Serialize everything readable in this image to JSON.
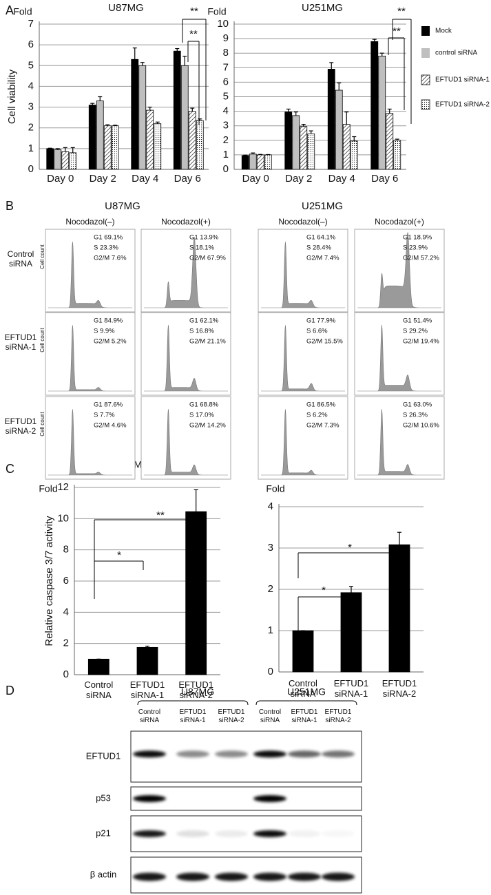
{
  "figure": {
    "panel_labels": [
      "A",
      "B",
      "C",
      "D"
    ]
  },
  "chart_data": [
    {
      "type": "bar",
      "title": "U87MG",
      "unit_label": "Fold",
      "ylabel": "Cell viability",
      "categories": [
        "Day 0",
        "Day 2",
        "Day 4",
        "Day 6"
      ],
      "series": [
        {
          "name": "Mock",
          "color": "#000000",
          "pattern": "solid",
          "values": [
            1.0,
            3.1,
            5.3,
            5.7
          ],
          "errors": [
            0.02,
            0.08,
            0.55,
            0.12
          ]
        },
        {
          "name": "control siRNA",
          "color": "#bfbfbf",
          "pattern": "solid",
          "values": [
            0.95,
            3.3,
            5.0,
            5.0
          ],
          "errors": [
            0.05,
            0.2,
            0.15,
            0.45
          ]
        },
        {
          "name": "EFTUD1 siRNA-1",
          "color": "#000000",
          "pattern": "hatch",
          "values": [
            0.85,
            2.1,
            2.85,
            2.8
          ],
          "errors": [
            0.2,
            0.05,
            0.15,
            0.15
          ]
        },
        {
          "name": "EFTUD1 siRNA-2",
          "color": "#000000",
          "pattern": "dots",
          "values": [
            0.8,
            2.1,
            2.2,
            2.35
          ],
          "errors": [
            0.25,
            0.03,
            0.08,
            0.08
          ]
        }
      ],
      "ylim": [
        0,
        7
      ],
      "yticks": [
        0,
        1,
        2,
        3,
        4,
        5,
        6,
        7
      ],
      "grid": true,
      "legend": "right",
      "annotations": [
        {
          "text": "**"
        },
        {
          "text": "**"
        }
      ]
    },
    {
      "type": "bar",
      "title": "U251MG",
      "unit_label": "Fold",
      "categories": [
        "Day 0",
        "Day 2",
        "Day 4",
        "Day 6"
      ],
      "series": [
        {
          "color": "#000000",
          "pattern": "solid",
          "values": [
            0.95,
            3.95,
            6.9,
            8.8
          ],
          "errors": [
            0.03,
            0.2,
            0.45,
            0.15
          ]
        },
        {
          "color": "#bfbfbf",
          "pattern": "solid",
          "values": [
            1.05,
            3.7,
            5.45,
            7.8
          ],
          "errors": [
            0.08,
            0.25,
            0.5,
            0.2
          ]
        },
        {
          "color": "#000000",
          "pattern": "hatch",
          "values": [
            1.0,
            2.95,
            3.1,
            3.85
          ],
          "errors": [
            0.03,
            0.15,
            0.85,
            0.3
          ]
        },
        {
          "color": "#000000",
          "pattern": "dots",
          "values": [
            1.0,
            2.45,
            1.95,
            2.0
          ],
          "errors": [
            0.02,
            0.2,
            0.3,
            0.08
          ]
        }
      ],
      "ylim": [
        0,
        10
      ],
      "yticks": [
        0,
        1,
        2,
        3,
        4,
        5,
        6,
        7,
        8,
        9,
        10
      ],
      "grid": true,
      "annotations": [
        {
          "text": "**"
        },
        {
          "text": "**"
        }
      ]
    },
    {
      "type": "bar",
      "title": "U87MG",
      "unit_label": "Fold",
      "ylabel": "Relative caspase 3/7 activity",
      "categories": [
        "Control siRNA",
        "EFTUD1 siRNA-1",
        "EFTUD1 siRNA-2"
      ],
      "values": [
        1,
        1.75,
        10.45
      ],
      "errors": [
        0,
        0.08,
        1.4
      ],
      "color": "#000000",
      "ylim": [
        0,
        12
      ],
      "yticks": [
        0,
        2,
        4,
        6,
        8,
        10,
        12
      ],
      "grid": true,
      "annotations": [
        {
          "text": "**"
        },
        {
          "text": "*"
        }
      ]
    },
    {
      "type": "bar",
      "title": "U251MG",
      "unit_label": "Fold",
      "categories": [
        "Control siRNA",
        "EFTUD1 siRNA-1",
        "EFTUD1 siRNA-2"
      ],
      "values": [
        1,
        1.92,
        3.08
      ],
      "errors": [
        0,
        0.15,
        0.3
      ],
      "color": "#000000",
      "ylim": [
        0,
        4
      ],
      "yticks": [
        0,
        1,
        2,
        3,
        4
      ],
      "grid": true,
      "annotations": [
        {
          "text": "*"
        },
        {
          "text": "*"
        }
      ]
    }
  ],
  "flow": {
    "cell_lines": [
      "U87MG",
      "U251MG"
    ],
    "conditions": [
      "Nocodazol(–)",
      "Nocodazol(+)",
      "Nocodazol(–)",
      "Nocodazol(+)"
    ],
    "y_label": "Cell count",
    "rows": [
      {
        "label": "Control siRNA",
        "panels": [
          [
            "G1 69.1%",
            "S 23.3%",
            "G2/M 7.6%"
          ],
          [
            "G1 13.9%",
            "S 18.1%",
            "G2/M 67.9%"
          ],
          [
            "G1 64.1%",
            "S 28.4%",
            "G2/M 7.4%"
          ],
          [
            "G1 18.9%",
            "S 23.9%",
            "G2/M 57.2%"
          ]
        ]
      },
      {
        "label": "EFTUD1 siRNA-1",
        "panels": [
          [
            "G1 84.9%",
            "S 9.9%",
            "G2/M 5.2%"
          ],
          [
            "G1 62.1%",
            "S 16.8%",
            "G2/M 21.1%"
          ],
          [
            "G1 77.9%",
            "S 6.6%",
            "G2/M 15.5%"
          ],
          [
            "G1 51.4%",
            "S 29.2%",
            "G2/M 19.4%"
          ]
        ]
      },
      {
        "label": "EFTUD1 siRNA-2",
        "panels": [
          [
            "G1 87.6%",
            "S 7.7%",
            "G2/M 4.6%"
          ],
          [
            "G1 68.8%",
            "S 17.0%",
            "G2/M 14.2%"
          ],
          [
            "G1 86.5%",
            "S 6.2%",
            "G2/M 7.3%"
          ],
          [
            "G1 63.0%",
            "S 26.3%",
            "G2/M 10.6%"
          ]
        ]
      }
    ]
  },
  "western": {
    "cell_lines": [
      "U87MG",
      "U251MG"
    ],
    "lanes": [
      "Control siRNA",
      "EFTUD1 siRNA-1",
      "EFTUD1 siRNA-2",
      "Control siRNA",
      "EFTUD1 siRNA-1",
      "EFTUD1 siRNA-2"
    ],
    "proteins": [
      "EFTUD1",
      "p53",
      "p21",
      "β actin"
    ]
  }
}
